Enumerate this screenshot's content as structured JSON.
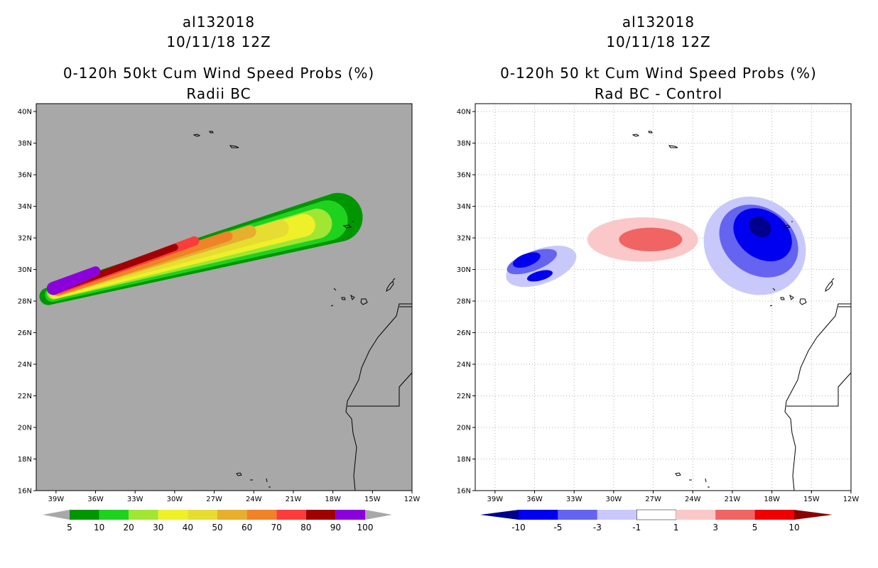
{
  "chart_data": [
    {
      "type": "heatmap",
      "storm_id": "al132018",
      "date": "10/11/18 12Z",
      "title": "0-120h 50kt Cum Wind Speed Probs (%)",
      "subtitle": "Radii BC",
      "x_ticks": [
        "39W",
        "36W",
        "33W",
        "30W",
        "27W",
        "24W",
        "21W",
        "18W",
        "15W",
        "12W"
      ],
      "y_ticks": [
        "40N",
        "38N",
        "36N",
        "34N",
        "32N",
        "30N",
        "28N",
        "26N",
        "24N",
        "22N",
        "20N",
        "18N",
        "16N"
      ],
      "lon_range": [
        -40.5,
        -12
      ],
      "lat_range": [
        16,
        40.5
      ],
      "background": "#a8a8a8",
      "colorbar": {
        "labels": [
          "5",
          "10",
          "20",
          "30",
          "40",
          "50",
          "60",
          "70",
          "80",
          "90",
          "100"
        ],
        "colors": [
          "#009600",
          "#1ed21e",
          "#a0e632",
          "#f0f028",
          "#e6dc32",
          "#e6af2d",
          "#f08228",
          "#fa3c3c",
          "#a00000",
          "#8c00dc"
        ]
      },
      "swath": [
        {
          "level": "5-10",
          "color": "#009600",
          "lon": [
            -39.6,
            -17.6
          ],
          "lat": [
            28.3,
            33.3
          ],
          "half_width": [
            0.55,
            1.55
          ]
        },
        {
          "level": "10-20",
          "color": "#1ed21e",
          "lon": [
            -39.3,
            -18.4
          ],
          "lat": [
            28.4,
            33.1
          ],
          "half_width": [
            0.45,
            1.28
          ]
        },
        {
          "level": "20-30",
          "color": "#a0e632",
          "lon": [
            -39.2,
            -19.2
          ],
          "lat": [
            28.5,
            32.9
          ],
          "half_width": [
            0.4,
            0.95
          ]
        },
        {
          "level": "30-40",
          "color": "#f0f028",
          "lon": [
            -39.1,
            -20.2
          ],
          "lat": [
            28.5,
            32.8
          ],
          "half_width": [
            0.35,
            0.72
          ]
        },
        {
          "level": "40-50",
          "color": "#e6dc32",
          "lon": [
            -39.0,
            -22.0
          ],
          "lat": [
            28.6,
            32.6
          ],
          "half_width": [
            0.3,
            0.55
          ]
        },
        {
          "level": "50-60",
          "color": "#e6af2d",
          "lon": [
            -38.9,
            -24.3
          ],
          "lat": [
            28.6,
            32.4
          ],
          "half_width": [
            0.28,
            0.4
          ]
        },
        {
          "level": "60-70",
          "color": "#f08228",
          "lon": [
            -38.8,
            -26.0
          ],
          "lat": [
            28.6,
            32.1
          ],
          "half_width": [
            0.26,
            0.32
          ]
        },
        {
          "level": "70-80",
          "color": "#fa3c3c",
          "lon": [
            -38.7,
            -28.5
          ],
          "lat": [
            28.7,
            31.8
          ],
          "half_width": [
            0.22,
            0.3
          ]
        },
        {
          "level": "80-90",
          "color": "#a00000",
          "lon": [
            -38.6,
            -30.0
          ],
          "lat": [
            28.8,
            31.4
          ],
          "half_width": [
            0.2,
            0.22
          ]
        },
        {
          "level": "90-100",
          "color": "#8c00dc",
          "lon": [
            -39.2,
            -36.0
          ],
          "lat": [
            28.8,
            29.9
          ],
          "half_width": [
            0.42,
            0.3
          ]
        }
      ]
    },
    {
      "type": "heatmap",
      "storm_id": "al132018",
      "date": "10/11/18 12Z",
      "title": "0-120h 50 kt Cum Wind Speed Probs (%)",
      "subtitle": "Rad BC - Control",
      "x_ticks": [
        "39W",
        "36W",
        "33W",
        "30W",
        "27W",
        "24W",
        "21W",
        "18W",
        "15W",
        "12W"
      ],
      "y_ticks": [
        "40N",
        "38N",
        "36N",
        "34N",
        "32N",
        "30N",
        "28N",
        "26N",
        "24N",
        "22N",
        "20N",
        "18N",
        "16N"
      ],
      "lon_range": [
        -40.5,
        -12
      ],
      "lat_range": [
        16,
        40.5
      ],
      "background": "#ffffff",
      "grid": true,
      "colorbar": {
        "labels": [
          "-10",
          "-5",
          "-3",
          "-1",
          "1",
          "3",
          "5",
          "10"
        ],
        "colors": [
          "#00008c",
          "#0000f0",
          "#6464f0",
          "#c8c8fa",
          "#ffffff",
          "#fac8c8",
          "#f06464",
          "#f00000",
          "#8c0000"
        ]
      },
      "blobs": [
        {
          "level": "-3 to -1",
          "color": "#c8c8fa",
          "lon": -35.5,
          "lat": 30.2,
          "rx_deg": 2.8,
          "ry_deg": 1.1,
          "rot": -20
        },
        {
          "level": "-5 to -3",
          "color": "#6464f0",
          "lon": -36.2,
          "lat": 30.5,
          "rx_deg": 2.0,
          "ry_deg": 0.6,
          "rot": -20
        },
        {
          "level": "-10 to -5",
          "color": "#0000f0",
          "lon": -36.6,
          "lat": 30.6,
          "rx_deg": 1.1,
          "ry_deg": 0.4,
          "rot": -20
        },
        {
          "level": "-10 to -5",
          "color": "#0000f0",
          "lon": -35.6,
          "lat": 29.6,
          "rx_deg": 1.0,
          "ry_deg": 0.3,
          "rot": -15
        },
        {
          "level": "1 to 3",
          "color": "#fac8c8",
          "lon": -27.8,
          "lat": 31.9,
          "rx_deg": 4.2,
          "ry_deg": 1.4,
          "rot": 0
        },
        {
          "level": "3 to 5",
          "color": "#f06464",
          "lon": -27.2,
          "lat": 31.9,
          "rx_deg": 2.4,
          "ry_deg": 0.75,
          "rot": 0
        },
        {
          "level": "-3 to -1",
          "color": "#c8c8fa",
          "lon": -19.3,
          "lat": 31.5,
          "rx_deg": 4.0,
          "ry_deg": 3.0,
          "rot": 35
        },
        {
          "level": "-5 to -3",
          "color": "#6464f0",
          "lon": -19.0,
          "lat": 31.8,
          "rx_deg": 3.2,
          "ry_deg": 2.1,
          "rot": 35
        },
        {
          "level": "-10 to -5",
          "color": "#0000f0",
          "lon": -18.7,
          "lat": 32.2,
          "rx_deg": 2.4,
          "ry_deg": 1.5,
          "rot": 35
        },
        {
          "level": "< -10",
          "color": "#00008c",
          "lon": -18.9,
          "lat": 32.7,
          "rx_deg": 0.9,
          "ry_deg": 0.6,
          "rot": 35
        }
      ]
    }
  ]
}
